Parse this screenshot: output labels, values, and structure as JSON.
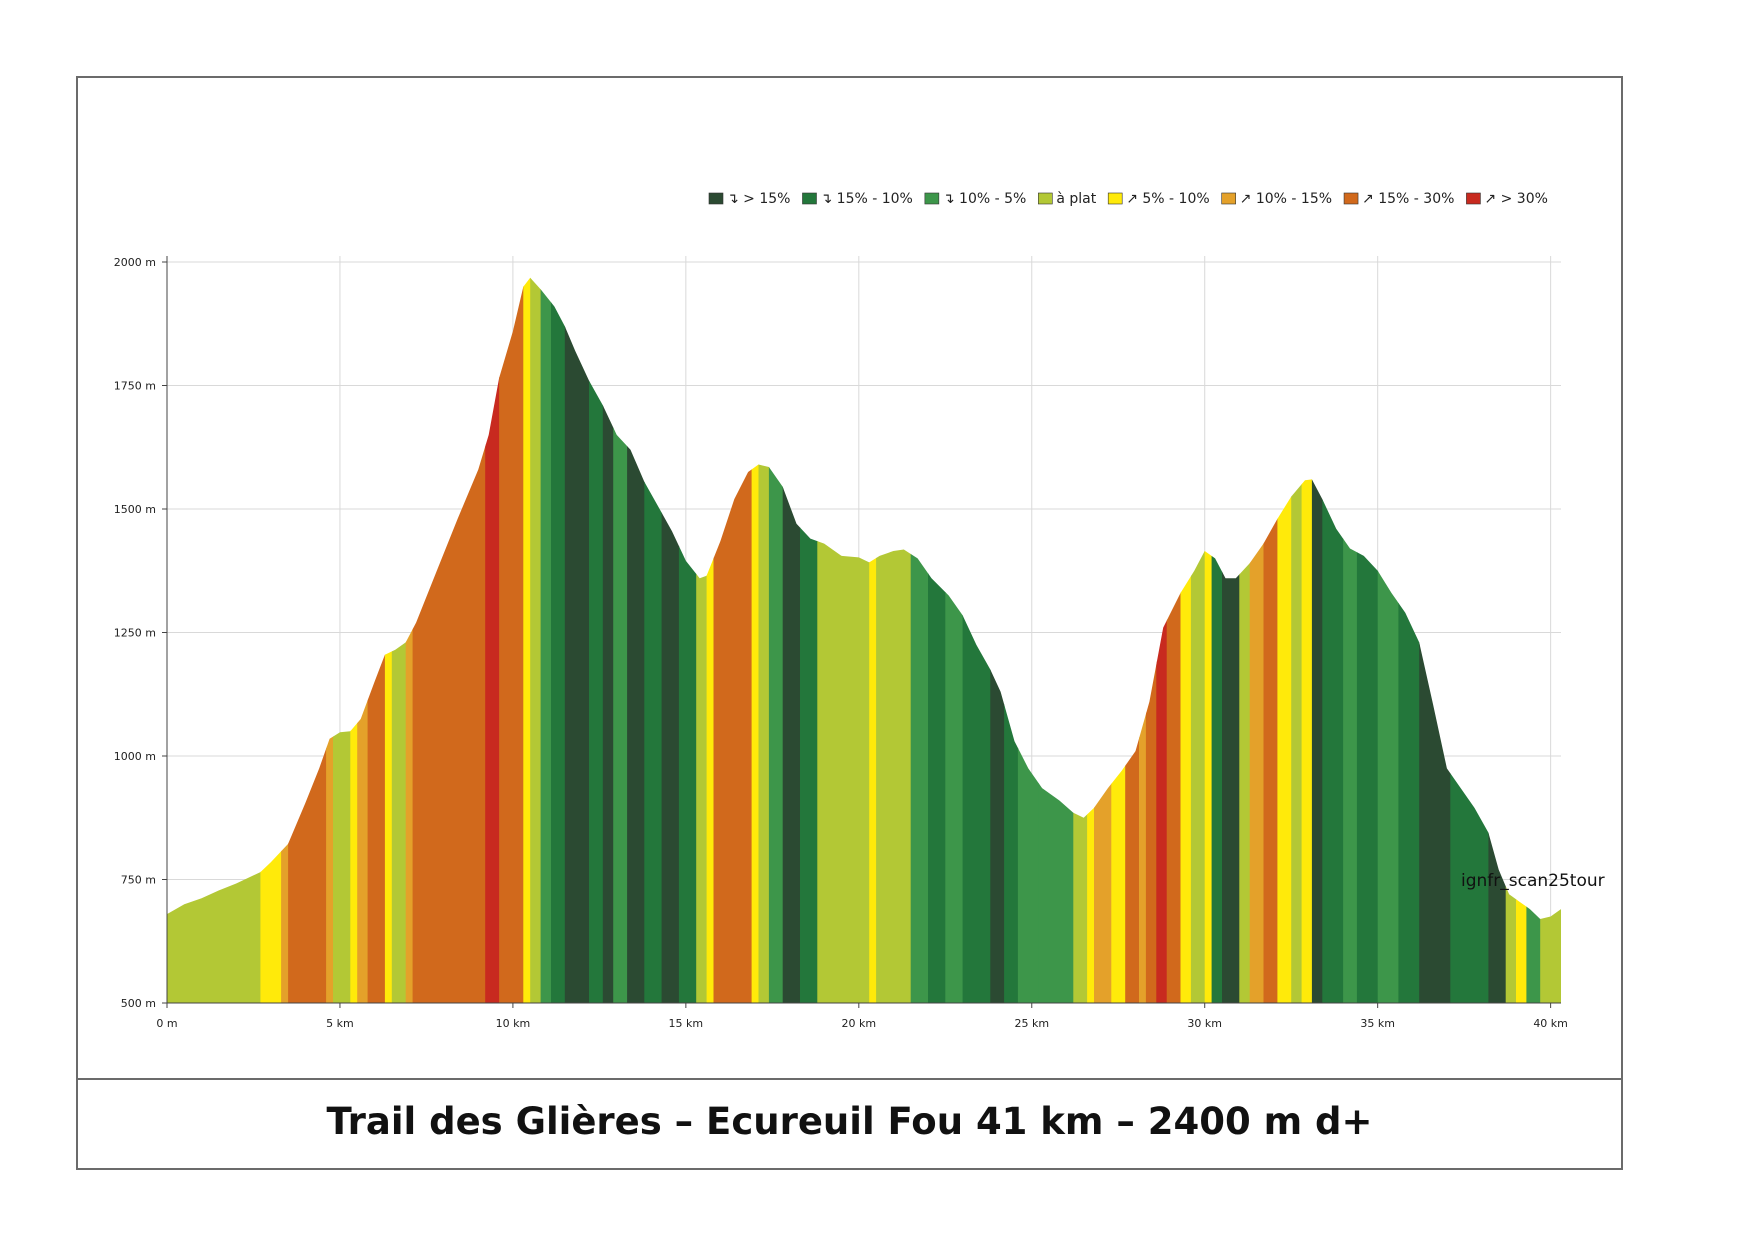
{
  "caption": "Trail des Glières – Ecureuil Fou 41 km – 2400 m d+",
  "watermark": "ignfr_scan25tour",
  "chart_data": {
    "type": "area",
    "x_unit": "km",
    "y_unit": "m",
    "xlim": [
      0,
      40.3
    ],
    "ylim": [
      500,
      2000
    ],
    "grid": true,
    "legend_position": "top-right",
    "x_ticks": [
      "0 m",
      "5 km",
      "10 km",
      "15 km",
      "20 km",
      "25 km",
      "30 km",
      "35 km",
      "40 km"
    ],
    "y_ticks": [
      "500 m",
      "750 m",
      "1000 m",
      "1250 m",
      "1500 m",
      "1750 m",
      "2000 m"
    ],
    "legend": [
      {
        "label": "↴ > 15%",
        "color": "#2b4a32"
      },
      {
        "label": "↴ 15% - 10%",
        "color": "#23773b"
      },
      {
        "label": "↴ 10% - 5%",
        "color": "#3d964a"
      },
      {
        "label": "à plat",
        "color": "#b3c835"
      },
      {
        "label": "↗ 5% - 10%",
        "color": "#ffea0a"
      },
      {
        "label": "↗ 10% - 15%",
        "color": "#e4a12a"
      },
      {
        "label": "↗ 15% - 30%",
        "color": "#d1691c"
      },
      {
        "label": "↗ > 30%",
        "color": "#c82a1f"
      }
    ],
    "profile": [
      [
        0,
        680
      ],
      [
        0.5,
        700
      ],
      [
        1.0,
        712
      ],
      [
        1.5,
        728
      ],
      [
        2.0,
        742
      ],
      [
        2.7,
        765
      ],
      [
        3.0,
        785
      ],
      [
        3.5,
        822
      ],
      [
        4.0,
        905
      ],
      [
        4.4,
        975
      ],
      [
        4.7,
        1035
      ],
      [
        5.0,
        1048
      ],
      [
        5.3,
        1050
      ],
      [
        5.6,
        1075
      ],
      [
        6.0,
        1150
      ],
      [
        6.3,
        1205
      ],
      [
        6.6,
        1215
      ],
      [
        6.9,
        1230
      ],
      [
        7.2,
        1270
      ],
      [
        7.8,
        1375
      ],
      [
        8.4,
        1480
      ],
      [
        9.0,
        1580
      ],
      [
        9.3,
        1650
      ],
      [
        9.6,
        1765
      ],
      [
        10.0,
        1860
      ],
      [
        10.3,
        1950
      ],
      [
        10.5,
        1968
      ],
      [
        10.8,
        1945
      ],
      [
        11.2,
        1910
      ],
      [
        11.5,
        1870
      ],
      [
        11.8,
        1820
      ],
      [
        12.2,
        1760
      ],
      [
        12.6,
        1710
      ],
      [
        13.0,
        1650
      ],
      [
        13.4,
        1620
      ],
      [
        13.8,
        1555
      ],
      [
        14.2,
        1505
      ],
      [
        14.6,
        1455
      ],
      [
        15.0,
        1395
      ],
      [
        15.4,
        1360
      ],
      [
        15.6,
        1365
      ],
      [
        16.0,
        1435
      ],
      [
        16.4,
        1520
      ],
      [
        16.8,
        1575
      ],
      [
        17.1,
        1590
      ],
      [
        17.4,
        1585
      ],
      [
        17.8,
        1545
      ],
      [
        18.2,
        1470
      ],
      [
        18.6,
        1440
      ],
      [
        19.0,
        1430
      ],
      [
        19.5,
        1405
      ],
      [
        20.0,
        1402
      ],
      [
        20.3,
        1392
      ],
      [
        20.6,
        1405
      ],
      [
        21.0,
        1415
      ],
      [
        21.3,
        1418
      ],
      [
        21.7,
        1400
      ],
      [
        22.1,
        1360
      ],
      [
        22.6,
        1325
      ],
      [
        23.0,
        1285
      ],
      [
        23.4,
        1225
      ],
      [
        23.8,
        1175
      ],
      [
        24.1,
        1130
      ],
      [
        24.5,
        1030
      ],
      [
        24.9,
        975
      ],
      [
        25.3,
        935
      ],
      [
        25.8,
        910
      ],
      [
        26.2,
        885
      ],
      [
        26.5,
        875
      ],
      [
        26.8,
        895
      ],
      [
        27.2,
        935
      ],
      [
        27.6,
        970
      ],
      [
        28.0,
        1010
      ],
      [
        28.4,
        1110
      ],
      [
        28.8,
        1260
      ],
      [
        29.3,
        1330
      ],
      [
        29.7,
        1375
      ],
      [
        30.0,
        1415
      ],
      [
        30.3,
        1400
      ],
      [
        30.6,
        1360
      ],
      [
        30.9,
        1360
      ],
      [
        31.3,
        1390
      ],
      [
        31.7,
        1430
      ],
      [
        32.1,
        1480
      ],
      [
        32.5,
        1525
      ],
      [
        32.9,
        1558
      ],
      [
        33.1,
        1560
      ],
      [
        33.4,
        1520
      ],
      [
        33.8,
        1460
      ],
      [
        34.2,
        1420
      ],
      [
        34.6,
        1405
      ],
      [
        35.0,
        1375
      ],
      [
        35.4,
        1330
      ],
      [
        35.8,
        1290
      ],
      [
        36.2,
        1230
      ],
      [
        36.6,
        1105
      ],
      [
        37.0,
        975
      ],
      [
        37.4,
        935
      ],
      [
        37.8,
        895
      ],
      [
        38.2,
        845
      ],
      [
        38.5,
        770
      ],
      [
        38.8,
        720
      ],
      [
        39.1,
        705
      ],
      [
        39.4,
        690
      ],
      [
        39.7,
        670
      ],
      [
        40.0,
        675
      ],
      [
        40.3,
        690
      ]
    ],
    "segments": [
      [
        0,
        2.7,
        3
      ],
      [
        2.7,
        3.3,
        4
      ],
      [
        3.3,
        3.5,
        5
      ],
      [
        3.5,
        4.6,
        6
      ],
      [
        4.6,
        4.8,
        5
      ],
      [
        4.8,
        5.3,
        3
      ],
      [
        5.3,
        5.5,
        4
      ],
      [
        5.5,
        5.8,
        5
      ],
      [
        5.8,
        6.3,
        6
      ],
      [
        6.3,
        6.5,
        4
      ],
      [
        6.5,
        6.9,
        3
      ],
      [
        6.9,
        7.1,
        5
      ],
      [
        7.1,
        9.2,
        6
      ],
      [
        9.2,
        9.6,
        7
      ],
      [
        9.6,
        10.3,
        6
      ],
      [
        10.3,
        10.5,
        4
      ],
      [
        10.5,
        10.8,
        3
      ],
      [
        10.8,
        11.1,
        2
      ],
      [
        11.1,
        11.5,
        1
      ],
      [
        11.5,
        12.2,
        0
      ],
      [
        12.2,
        12.6,
        1
      ],
      [
        12.6,
        12.9,
        0
      ],
      [
        12.9,
        13.3,
        2
      ],
      [
        13.3,
        13.8,
        0
      ],
      [
        13.8,
        14.3,
        1
      ],
      [
        14.3,
        14.8,
        0
      ],
      [
        14.8,
        15.3,
        1
      ],
      [
        15.3,
        15.6,
        3
      ],
      [
        15.6,
        15.8,
        4
      ],
      [
        15.8,
        16.9,
        6
      ],
      [
        16.9,
        17.1,
        4
      ],
      [
        17.1,
        17.4,
        3
      ],
      [
        17.4,
        17.8,
        2
      ],
      [
        17.8,
        18.3,
        0
      ],
      [
        18.3,
        18.8,
        1
      ],
      [
        18.8,
        19.5,
        3
      ],
      [
        19.5,
        20.3,
        3
      ],
      [
        20.3,
        20.5,
        4
      ],
      [
        20.5,
        21.5,
        3
      ],
      [
        21.5,
        22.0,
        2
      ],
      [
        22.0,
        22.5,
        1
      ],
      [
        22.5,
        23.0,
        2
      ],
      [
        23.0,
        23.8,
        1
      ],
      [
        23.8,
        24.2,
        0
      ],
      [
        24.2,
        24.6,
        1
      ],
      [
        24.6,
        25.2,
        2
      ],
      [
        25.2,
        26.2,
        2
      ],
      [
        26.2,
        26.6,
        3
      ],
      [
        26.6,
        26.8,
        4
      ],
      [
        26.8,
        27.3,
        5
      ],
      [
        27.3,
        27.7,
        4
      ],
      [
        27.7,
        28.1,
        6
      ],
      [
        28.1,
        28.3,
        5
      ],
      [
        28.3,
        28.6,
        6
      ],
      [
        28.6,
        28.9,
        7
      ],
      [
        28.9,
        29.3,
        6
      ],
      [
        29.3,
        29.6,
        4
      ],
      [
        29.6,
        30.0,
        3
      ],
      [
        30.0,
        30.2,
        4
      ],
      [
        30.2,
        30.5,
        1
      ],
      [
        30.5,
        31.0,
        0
      ],
      [
        31.0,
        31.3,
        3
      ],
      [
        31.3,
        31.7,
        5
      ],
      [
        31.7,
        32.1,
        6
      ],
      [
        32.1,
        32.5,
        4
      ],
      [
        32.5,
        32.8,
        3
      ],
      [
        32.8,
        33.1,
        4
      ],
      [
        33.1,
        33.4,
        0
      ],
      [
        33.4,
        34.0,
        1
      ],
      [
        34.0,
        34.4,
        2
      ],
      [
        34.4,
        35.0,
        1
      ],
      [
        35.0,
        35.6,
        2
      ],
      [
        35.6,
        36.2,
        1
      ],
      [
        36.2,
        37.1,
        0
      ],
      [
        37.1,
        38.2,
        1
      ],
      [
        38.2,
        38.7,
        0
      ],
      [
        38.7,
        39.0,
        3
      ],
      [
        39.0,
        39.3,
        4
      ],
      [
        39.3,
        39.7,
        2
      ],
      [
        39.7,
        40.3,
        3
      ]
    ]
  }
}
